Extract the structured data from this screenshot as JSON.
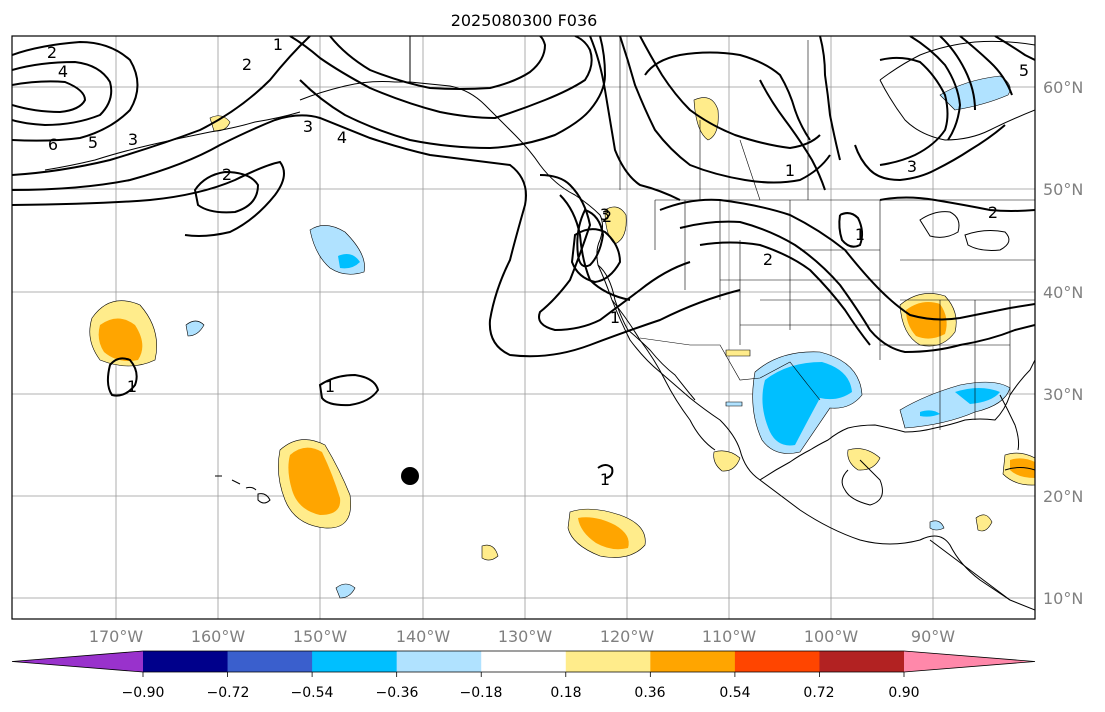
{
  "title": "2025080300 F036",
  "lon_labels": [
    "170°W",
    "160°W",
    "150°W",
    "140°W",
    "130°W",
    "120°W",
    "110°W",
    "100°W",
    "90°W"
  ],
  "lat_labels": [
    "60°N",
    "50°N",
    "40°N",
    "30°N",
    "20°N",
    "10°N"
  ],
  "colorbar": {
    "colors": [
      "#9932cc",
      "#00008b",
      "#3a5fcd",
      "#00bfff",
      "#b0e2ff",
      "#ffffff",
      "#ffec8b",
      "#ffa500",
      "#ff4500",
      "#b22222",
      "#ff88aa"
    ],
    "ticks": [
      "−0.90",
      "−0.72",
      "−0.54",
      "−0.36",
      "−0.18",
      "0.18",
      "0.36",
      "0.54",
      "0.72",
      "0.90"
    ]
  },
  "contour_labels": [
    "2",
    "4",
    "6",
    "5",
    "3",
    "1",
    "2",
    "3",
    "4",
    "2",
    "1",
    "1",
    "2",
    "1",
    "1",
    "2",
    "3",
    "5",
    "2",
    "1",
    "3",
    "1"
  ],
  "colors": {
    "light_yellow": "#ffec8b",
    "orange": "#ffa500",
    "light_blue": "#b0e2ff",
    "deep_sky_blue": "#00bfff",
    "grid": "#999999"
  }
}
